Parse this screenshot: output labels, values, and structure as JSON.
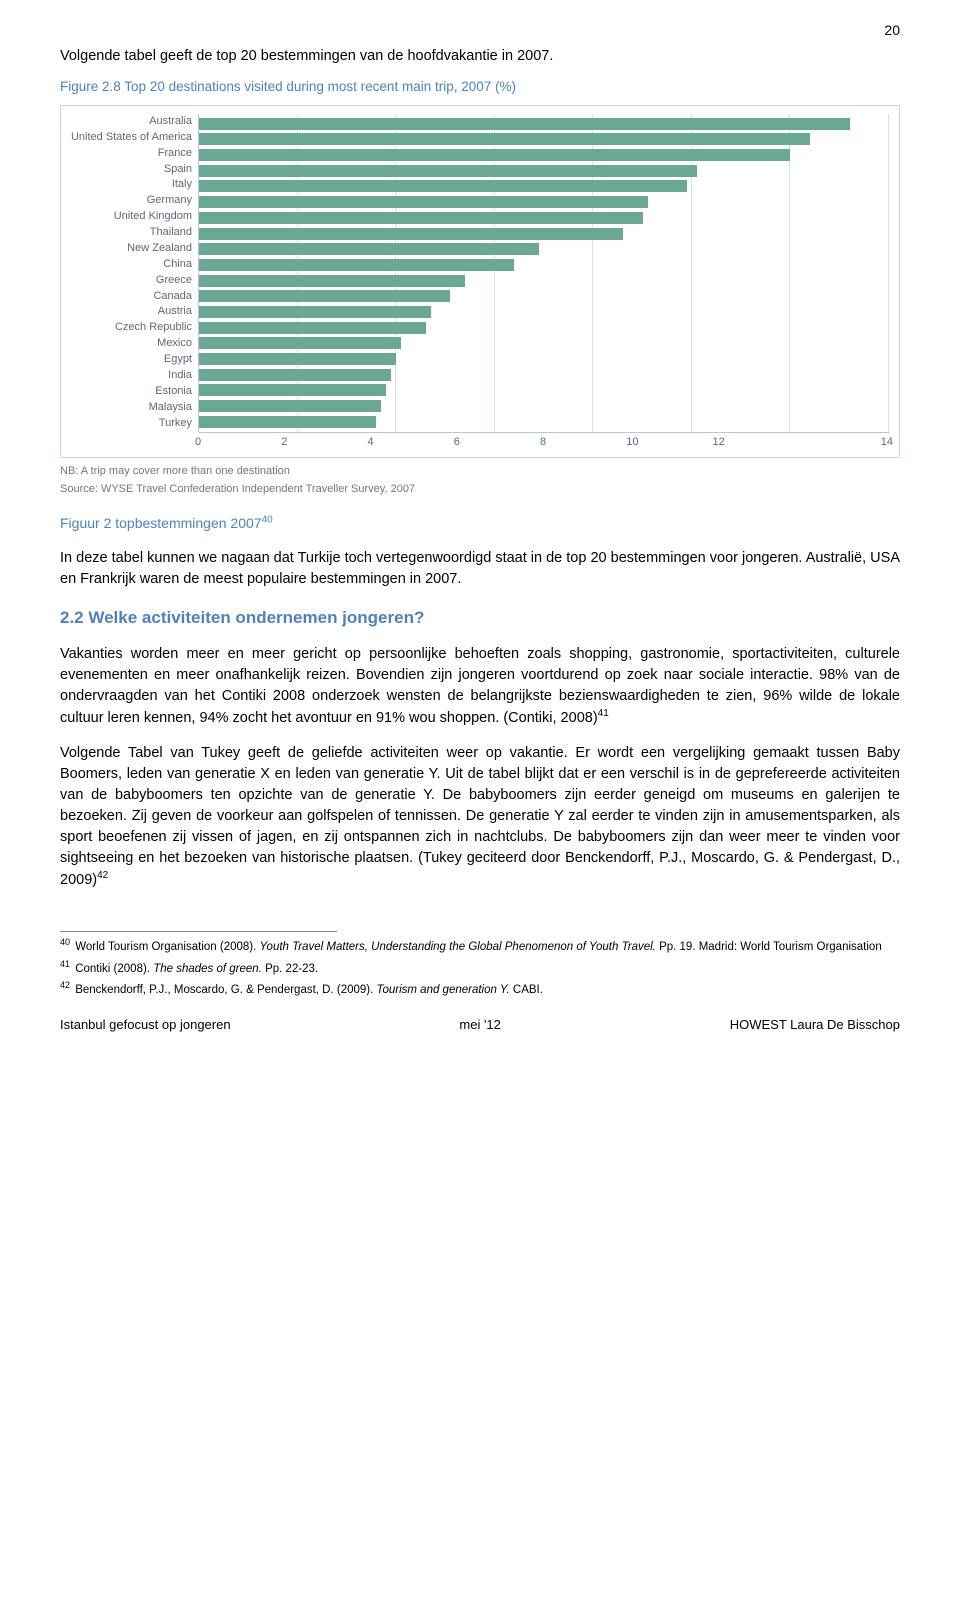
{
  "page_number": "20",
  "intro_text": "Volgende tabel geeft de top 20 bestemmingen van de hoofdvakantie  in 2007.",
  "figure_header": "Figure 2.8 Top 20 destinations visited during most recent main trip, 2007 (%)",
  "chart": {
    "type": "bar-horizontal",
    "x_max": 14,
    "x_ticks": [
      "0",
      "2",
      "4",
      "6",
      "8",
      "10",
      "12",
      "14"
    ],
    "bar_color": "#6aa894",
    "grid_color": "#d4e1ee",
    "axis_color": "#b8c7d9",
    "text_color": "#5a6a7a",
    "background": "#ffffff",
    "categories": [
      {
        "label": "Australia",
        "value": 13.2
      },
      {
        "label": "United States of America",
        "value": 12.4
      },
      {
        "label": "France",
        "value": 12.0
      },
      {
        "label": "Spain",
        "value": 10.1
      },
      {
        "label": "Italy",
        "value": 9.9
      },
      {
        "label": "Germany",
        "value": 9.1
      },
      {
        "label": "United Kingdom",
        "value": 9.0
      },
      {
        "label": "Thailand",
        "value": 8.6
      },
      {
        "label": "New Zealand",
        "value": 6.9
      },
      {
        "label": "China",
        "value": 6.4
      },
      {
        "label": "Greece",
        "value": 5.4
      },
      {
        "label": "Canada",
        "value": 5.1
      },
      {
        "label": "Austria",
        "value": 4.7
      },
      {
        "label": "Czech Republic",
        "value": 4.6
      },
      {
        "label": "Mexico",
        "value": 4.1
      },
      {
        "label": "Egypt",
        "value": 4.0
      },
      {
        "label": "India",
        "value": 3.9
      },
      {
        "label": "Estonia",
        "value": 3.8
      },
      {
        "label": "Malaysia",
        "value": 3.7
      },
      {
        "label": "Turkey",
        "value": 3.6
      }
    ]
  },
  "nb_text": "NB: A trip may cover more than one destination",
  "source_text": "Source: WYSE Travel Confederation Independent Traveller Survey, 2007",
  "figure_caption": "Figuur 2 topbestemmingen 2007",
  "figure_caption_ref": "40",
  "para1": "In deze tabel kunnen we nagaan dat Turkije toch vertegenwoordigd staat in de top 20 bestemmingen voor jongeren. Australië, USA en Frankrijk waren de meest populaire bestemmingen in 2007.",
  "heading2": "2.2  Welke activiteiten ondernemen jongeren?",
  "para2a": "Vakanties worden meer en meer gericht op persoonlijke behoeften zoals shopping, gastronomie, sportactiviteiten, culturele evenementen en meer onafhankelijk reizen. Bovendien zijn jongeren voortdurend op zoek naar sociale interactie. 98% van de ondervraagden van het Contiki 2008 onderzoek wensten de belangrijkste bezienswaardigheden te zien, 96% wilde de lokale cultuur leren kennen, 94% zocht het avontuur en 91% wou shoppen. (Contiki, 2008)",
  "para2a_ref": "41",
  "para3": "Volgende Tabel  van Tukey geeft de geliefde activiteiten weer op vakantie. Er wordt een vergelijking gemaakt tussen Baby Boomers, leden van generatie X en leden van generatie Y. Uit de tabel blijkt dat er een verschil is in de geprefereerde activiteiten van de babyboomers ten opzichte van de generatie Y. De babyboomers zijn eerder geneigd om museums en galerijen te bezoeken. Zij geven de voorkeur aan golfspelen of tennissen. De generatie Y zal eerder te vinden zijn in amusementsparken, als sport beoefenen zij vissen of jagen, en zij ontspannen zich in nachtclubs. De babyboomers zijn dan weer meer te vinden voor sightseeing en het bezoeken van historische plaatsen. (Tukey geciteerd door Benckendorff, P.J., Moscardo, G. & Pendergast, D., 2009)",
  "para3_ref": "42",
  "footnotes": [
    {
      "num": "40",
      "text_pre": "World Tourism Organisation (2008). ",
      "text_italic": "Youth Travel Matters, Understanding the Global Phenomenon of Youth Travel.",
      "text_post": " Pp. 19. Madrid: World Tourism Organisation"
    },
    {
      "num": "41",
      "text_pre": "Contiki (2008). ",
      "text_italic": "The shades of green.",
      "text_post": " Pp. 22-23."
    },
    {
      "num": "42",
      "text_pre": "Benckendorff, P.J., Moscardo, G. & Pendergast, D. (2009). ",
      "text_italic": "Tourism and generation Y.",
      "text_post": " CABI."
    }
  ],
  "footer": {
    "left": "Istanbul gefocust op jongeren",
    "center": "mei '12",
    "right": "HOWEST Laura De Bisschop"
  }
}
